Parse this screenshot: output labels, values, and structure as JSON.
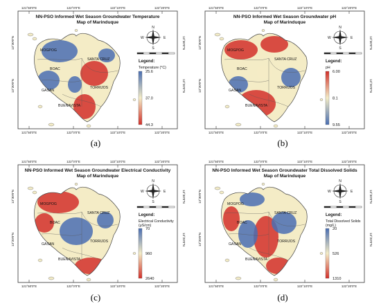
{
  "coords": {
    "lon_top": [
      "121°50'0\"E",
      "122°0'0\"E",
      "122°10'0\"E",
      "122°20'0\"E"
    ],
    "lon_bottom": [
      "121°50'0\"E",
      "122°0'0\"E",
      "122°10'0\"E",
      "122°20'0\"E"
    ],
    "lat_left": [
      "13°30'0\"N",
      "13°20'0\"N"
    ],
    "lat_right": [
      "13°30'0\"N",
      "13°20'0\"N"
    ]
  },
  "places": {
    "mogpog": "MOGPOG",
    "boac": "BOAC",
    "santa_cruz": "SANTA CRUZ",
    "gasan": "GASAN",
    "torrijos": "TORRIJOS",
    "buenavista": "BUENAVISTA"
  },
  "compass": {
    "n": "N",
    "s": "S",
    "e": "E",
    "w": "W"
  },
  "legend_title": "Legend:",
  "panels": [
    {
      "id": "a",
      "title_line1": "NN-PSO Informed Wet Season Groundwater Temperature",
      "title_line2": "Map of Marinduque",
      "variable": "Temperature (°C)",
      "variable_line2": "",
      "values": [
        "25.6",
        "37.0",
        "44.3"
      ],
      "caption": "(a)",
      "colors": {
        "low": "#4a6fb3",
        "mid": "#f4ecc6",
        "high": "#d2302a"
      }
    },
    {
      "id": "b",
      "title_line1": "NN-PSO Informed Wet Season Groundwater pH",
      "title_line2": "Map of Marinduque",
      "variable": "pH",
      "variable_line2": "",
      "values": [
        "6.00",
        "8.1",
        "9.55"
      ],
      "caption": "(b)",
      "colors": {
        "low": "#d2302a",
        "mid": "#f4ecc6",
        "high": "#4a6fb3"
      }
    },
    {
      "id": "c",
      "title_line1": "NN-PSO Informed Wet Season Groundwater Electrical Conductivity",
      "title_line2": "Map of Marinduque",
      "variable": "Electrical Conductivity",
      "variable_line2": "(μS/cm)",
      "values": [
        "70",
        "960",
        "2640"
      ],
      "caption": "(c)",
      "colors": {
        "low": "#4a6fb3",
        "mid": "#f4ecc6",
        "high": "#d2302a"
      }
    },
    {
      "id": "d",
      "title_line1": "NN-PSO Informed Wet Season Groundwater Total Dissolved Solids",
      "title_line2": "Map of Marinduque",
      "variable": "Total Dissolved Solids",
      "variable_line2": "(mg/L)",
      "values": [
        "20",
        "526",
        "1310"
      ],
      "caption": "(d)",
      "colors": {
        "low": "#4a6fb3",
        "mid": "#f4ecc6",
        "high": "#d2302a"
      }
    }
  ]
}
